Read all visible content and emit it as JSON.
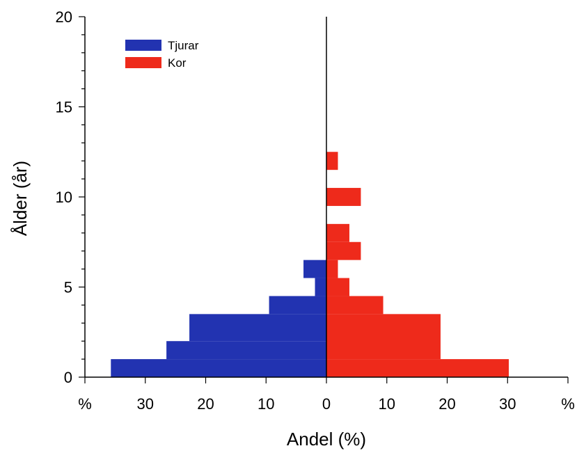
{
  "chart_data": {
    "type": "bar",
    "orientation": "horizontal-population-pyramid",
    "title": "",
    "xlabel": "Andel (%)",
    "ylabel": "Ålder (år)",
    "x_tick_labels": [
      "%",
      "30",
      "20",
      "10",
      "0",
      "10",
      "20",
      "30",
      "%"
    ],
    "x_ticks": [
      -40,
      -30,
      -20,
      -10,
      0,
      10,
      20,
      30,
      40
    ],
    "xlim": [
      -40,
      40
    ],
    "y_ticks": [
      0,
      5,
      10,
      15,
      20
    ],
    "y_tick_labels": [
      "0",
      "5",
      "10",
      "15",
      "20"
    ],
    "ylim": [
      0,
      20
    ],
    "grid": false,
    "legend_position": "top-left",
    "series": [
      {
        "name": "Tjurar",
        "color": "#2233b1",
        "side": "left",
        "bins": [
          {
            "age_from": 0,
            "age_to": 1,
            "value": 35.7
          },
          {
            "age_from": 1,
            "age_to": 2,
            "value": 26.5
          },
          {
            "age_from": 2,
            "age_to": 3.5,
            "value": 22.7
          },
          {
            "age_from": 3.5,
            "age_to": 4.5,
            "value": 9.5
          },
          {
            "age_from": 4.5,
            "age_to": 5.5,
            "value": 1.9
          },
          {
            "age_from": 5.5,
            "age_to": 6.5,
            "value": 3.8
          }
        ]
      },
      {
        "name": "Kor",
        "color": "#ee2a1b",
        "side": "right",
        "bins": [
          {
            "age_from": 0,
            "age_to": 1,
            "value": 30.2
          },
          {
            "age_from": 1,
            "age_to": 3.5,
            "value": 18.9
          },
          {
            "age_from": 3.5,
            "age_to": 4.5,
            "value": 9.4
          },
          {
            "age_from": 4.5,
            "age_to": 5.5,
            "value": 3.8
          },
          {
            "age_from": 5.5,
            "age_to": 6.5,
            "value": 1.9
          },
          {
            "age_from": 6.5,
            "age_to": 7.5,
            "value": 5.7
          },
          {
            "age_from": 7.5,
            "age_to": 8.5,
            "value": 3.8
          },
          {
            "age_from": 9.5,
            "age_to": 10.5,
            "value": 5.7
          },
          {
            "age_from": 11.5,
            "age_to": 12.5,
            "value": 1.9
          }
        ]
      }
    ]
  }
}
